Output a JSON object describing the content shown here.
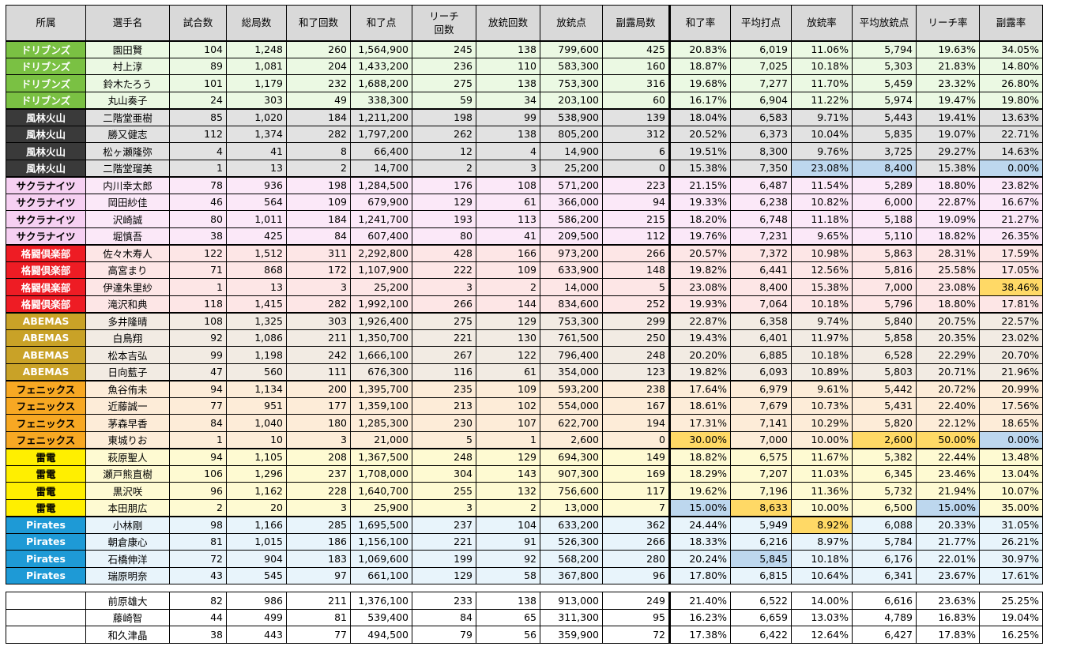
{
  "header": [
    "所属",
    "選手名",
    "試合数",
    "総局数",
    "和了回数",
    "和了点",
    "リーチ\n回数",
    "放銃回数",
    "放銃点",
    "副露局数",
    "和了率",
    "平均打点",
    "放銃率",
    "平均放銃点",
    "リーチ率",
    "副露率"
  ],
  "teams": [
    {
      "name": "ドリブンズ",
      "bg": "#7ac143",
      "fg": "#ffffff",
      "row_bg": "#ebf9e3",
      "players": [
        [
          "園田賢",
          "104",
          "1,248",
          "260",
          "1,564,900",
          "245",
          "138",
          "799,600",
          "425",
          "20.83%",
          "6,019",
          "11.06%",
          "5,794",
          "19.63%",
          "34.05%"
        ],
        [
          "村上淳",
          "89",
          "1,081",
          "204",
          "1,433,200",
          "236",
          "110",
          "583,300",
          "160",
          "18.87%",
          "7,025",
          "10.18%",
          "5,303",
          "21.83%",
          "14.80%"
        ],
        [
          "鈴木たろう",
          "101",
          "1,179",
          "232",
          "1,688,200",
          "275",
          "138",
          "753,300",
          "316",
          "19.68%",
          "7,277",
          "11.70%",
          "5,459",
          "23.32%",
          "26.80%"
        ],
        [
          "丸山奏子",
          "24",
          "303",
          "49",
          "338,300",
          "59",
          "34",
          "203,100",
          "60",
          "16.17%",
          "6,904",
          "11.22%",
          "5,974",
          "19.47%",
          "19.80%"
        ]
      ]
    },
    {
      "name": "風林火山",
      "bg": "#3a3a3a",
      "fg": "#ffffff",
      "row_bg": "#e2e2e2",
      "players": [
        [
          "二階堂亜樹",
          "85",
          "1,020",
          "184",
          "1,211,200",
          "198",
          "99",
          "538,900",
          "139",
          "18.04%",
          "6,583",
          "9.71%",
          "5,443",
          "19.41%",
          "13.63%"
        ],
        [
          "勝又健志",
          "112",
          "1,374",
          "282",
          "1,797,200",
          "262",
          "138",
          "805,200",
          "312",
          "20.52%",
          "6,373",
          "10.04%",
          "5,835",
          "19.07%",
          "22.71%"
        ],
        [
          "松ヶ瀬隆弥",
          "4",
          "41",
          "8",
          "66,400",
          "12",
          "4",
          "14,900",
          "6",
          "19.51%",
          "8,300",
          "9.76%",
          "3,725",
          "29.27%",
          "14.63%"
        ],
        [
          "二階堂瑠美",
          "1",
          "13",
          "2",
          "14,700",
          "2",
          "3",
          "25,200",
          "0",
          "15.38%",
          "7,350",
          "23.08%",
          "8,400",
          "15.38%",
          "0.00%"
        ]
      ]
    },
    {
      "name": "サクラナイツ",
      "bg": "#f6d0f2",
      "fg": "#000000",
      "row_bg": "#fbe8f8",
      "players": [
        [
          "内川幸太郎",
          "78",
          "936",
          "198",
          "1,284,500",
          "176",
          "108",
          "571,200",
          "223",
          "21.15%",
          "6,487",
          "11.54%",
          "5,289",
          "18.80%",
          "23.82%"
        ],
        [
          "岡田紗佳",
          "46",
          "564",
          "109",
          "679,900",
          "129",
          "61",
          "366,000",
          "94",
          "19.33%",
          "6,238",
          "10.82%",
          "6,000",
          "22.87%",
          "16.67%"
        ],
        [
          "沢崎誠",
          "80",
          "1,011",
          "184",
          "1,241,700",
          "193",
          "113",
          "586,200",
          "215",
          "18.20%",
          "6,748",
          "11.18%",
          "5,188",
          "19.09%",
          "21.27%"
        ],
        [
          "堀慎吾",
          "38",
          "425",
          "84",
          "607,400",
          "80",
          "41",
          "209,500",
          "112",
          "19.76%",
          "7,231",
          "9.65%",
          "5,110",
          "18.82%",
          "26.35%"
        ]
      ]
    },
    {
      "name": "格闘倶楽部",
      "bg": "#ee1c24",
      "fg": "#ffffff",
      "row_bg": "#fde6e6",
      "players": [
        [
          "佐々木寿人",
          "122",
          "1,512",
          "311",
          "2,292,800",
          "428",
          "166",
          "973,200",
          "266",
          "20.57%",
          "7,372",
          "10.98%",
          "5,863",
          "28.31%",
          "17.59%"
        ],
        [
          "高宮まり",
          "71",
          "868",
          "172",
          "1,107,900",
          "222",
          "109",
          "633,900",
          "148",
          "19.82%",
          "6,441",
          "12.56%",
          "5,816",
          "25.58%",
          "17.05%"
        ],
        [
          "伊達朱里紗",
          "1",
          "13",
          "3",
          "25,200",
          "3",
          "2",
          "14,000",
          "5",
          "23.08%",
          "8,400",
          "15.38%",
          "7,000",
          "23.08%",
          "38.46%"
        ],
        [
          "滝沢和典",
          "118",
          "1,415",
          "282",
          "1,992,100",
          "266",
          "144",
          "834,600",
          "252",
          "19.93%",
          "7,064",
          "10.18%",
          "5,796",
          "18.80%",
          "17.81%"
        ]
      ]
    },
    {
      "name": "ABEMAS",
      "bg": "#c9a227",
      "fg": "#ffffff",
      "row_bg": "#f2ebe3",
      "players": [
        [
          "多井隆晴",
          "108",
          "1,325",
          "303",
          "1,926,400",
          "275",
          "129",
          "753,300",
          "299",
          "22.87%",
          "6,358",
          "9.74%",
          "5,840",
          "20.75%",
          "22.57%"
        ],
        [
          "白鳥翔",
          "92",
          "1,086",
          "211",
          "1,350,700",
          "221",
          "130",
          "761,500",
          "250",
          "19.43%",
          "6,401",
          "11.97%",
          "5,858",
          "20.35%",
          "23.02%"
        ],
        [
          "松本吉弘",
          "99",
          "1,198",
          "242",
          "1,666,100",
          "267",
          "122",
          "796,400",
          "248",
          "20.20%",
          "6,885",
          "10.18%",
          "6,528",
          "22.29%",
          "20.70%"
        ],
        [
          "日向藍子",
          "47",
          "560",
          "111",
          "676,300",
          "116",
          "61",
          "354,000",
          "123",
          "19.82%",
          "6,093",
          "10.89%",
          "5,803",
          "20.71%",
          "21.96%"
        ]
      ]
    },
    {
      "name": "フェニックス",
      "bg": "#f7a823",
      "fg": "#000000",
      "row_bg": "#fdecd8",
      "players": [
        [
          "魚谷侑未",
          "94",
          "1,134",
          "200",
          "1,395,700",
          "235",
          "109",
          "593,200",
          "238",
          "17.64%",
          "6,979",
          "9.61%",
          "5,442",
          "20.72%",
          "20.99%"
        ],
        [
          "近藤誠一",
          "77",
          "951",
          "177",
          "1,359,100",
          "213",
          "102",
          "554,000",
          "167",
          "18.61%",
          "7,679",
          "10.73%",
          "5,431",
          "22.40%",
          "17.56%"
        ],
        [
          "茅森早香",
          "84",
          "1,040",
          "180",
          "1,285,300",
          "230",
          "107",
          "622,700",
          "194",
          "17.31%",
          "7,141",
          "10.29%",
          "5,820",
          "22.12%",
          "18.65%"
        ],
        [
          "東城りお",
          "1",
          "10",
          "3",
          "21,000",
          "5",
          "1",
          "2,600",
          "0",
          "30.00%",
          "7,000",
          "10.00%",
          "2,600",
          "50.00%",
          "0.00%"
        ]
      ]
    },
    {
      "name": "雷電",
      "bg": "#ffef00",
      "fg": "#000000",
      "row_bg": "#fefad2",
      "players": [
        [
          "萩原聖人",
          "94",
          "1,105",
          "208",
          "1,367,500",
          "248",
          "129",
          "694,300",
          "149",
          "18.82%",
          "6,575",
          "11.67%",
          "5,382",
          "22.44%",
          "13.48%"
        ],
        [
          "瀬戸熊直樹",
          "106",
          "1,296",
          "237",
          "1,708,000",
          "304",
          "143",
          "907,300",
          "169",
          "18.29%",
          "7,207",
          "11.03%",
          "6,345",
          "23.46%",
          "13.04%"
        ],
        [
          "黒沢咲",
          "96",
          "1,162",
          "228",
          "1,640,700",
          "255",
          "132",
          "756,600",
          "117",
          "19.62%",
          "7,196",
          "11.36%",
          "5,732",
          "21.94%",
          "10.07%"
        ],
        [
          "本田朋広",
          "2",
          "20",
          "3",
          "25,900",
          "3",
          "2",
          "13,000",
          "7",
          "15.00%",
          "8,633",
          "10.00%",
          "6,500",
          "15.00%",
          "35.00%"
        ]
      ]
    },
    {
      "name": "Pirates",
      "bg": "#1e9ad6",
      "fg": "#ffffff",
      "row_bg": "#e8f4fb",
      "players": [
        [
          "小林剛",
          "98",
          "1,166",
          "285",
          "1,695,500",
          "237",
          "104",
          "633,200",
          "362",
          "24.44%",
          "5,949",
          "8.92%",
          "6,088",
          "20.33%",
          "31.05%"
        ],
        [
          "朝倉康心",
          "81",
          "1,015",
          "186",
          "1,156,100",
          "221",
          "91",
          "526,300",
          "266",
          "18.33%",
          "6,216",
          "8.97%",
          "5,784",
          "21.77%",
          "26.21%"
        ],
        [
          "石橋伸洋",
          "72",
          "904",
          "183",
          "1,069,600",
          "199",
          "92",
          "568,200",
          "280",
          "20.24%",
          "5,845",
          "10.18%",
          "6,176",
          "22.01%",
          "30.97%"
        ],
        [
          "瑞原明奈",
          "43",
          "545",
          "97",
          "661,100",
          "129",
          "58",
          "367,800",
          "96",
          "17.80%",
          "6,815",
          "10.64%",
          "6,341",
          "23.67%",
          "17.61%"
        ]
      ]
    }
  ],
  "others": [
    [
      "前原雄大",
      "82",
      "986",
      "211",
      "1,376,100",
      "233",
      "138",
      "913,000",
      "249",
      "21.40%",
      "6,522",
      "14.00%",
      "6,616",
      "23.63%",
      "25.25%"
    ],
    [
      "藤崎智",
      "44",
      "499",
      "81",
      "539,400",
      "84",
      "65",
      "311,300",
      "95",
      "16.23%",
      "6,659",
      "13.03%",
      "4,789",
      "16.83%",
      "19.04%"
    ],
    [
      "和久津晶",
      "38",
      "443",
      "77",
      "494,500",
      "79",
      "56",
      "359,900",
      "72",
      "17.38%",
      "6,422",
      "12.64%",
      "6,427",
      "17.83%",
      "16.25%"
    ]
  ],
  "highlights": [
    {
      "team": 1,
      "row": 3,
      "col": 11,
      "color": "#bdd7ee"
    },
    {
      "team": 1,
      "row": 3,
      "col": 12,
      "color": "#bdd7ee"
    },
    {
      "team": 1,
      "row": 3,
      "col": 14,
      "color": "#bdd7ee"
    },
    {
      "team": 3,
      "row": 2,
      "col": 14,
      "color": "#ffd966"
    },
    {
      "team": 5,
      "row": 3,
      "col": 9,
      "color": "#ffd966"
    },
    {
      "team": 5,
      "row": 3,
      "col": 12,
      "color": "#ffd966"
    },
    {
      "team": 5,
      "row": 3,
      "col": 13,
      "color": "#ffd966"
    },
    {
      "team": 5,
      "row": 3,
      "col": 14,
      "color": "#bdd7ee"
    },
    {
      "team": 6,
      "row": 3,
      "col": 9,
      "color": "#bdd7ee"
    },
    {
      "team": 6,
      "row": 3,
      "col": 10,
      "color": "#ffd966"
    },
    {
      "team": 6,
      "row": 3,
      "col": 13,
      "color": "#bdd7ee"
    },
    {
      "team": 7,
      "row": 0,
      "col": 11,
      "color": "#ffd966"
    },
    {
      "team": 7,
      "row": 2,
      "col": 10,
      "color": "#bdd7ee"
    }
  ]
}
